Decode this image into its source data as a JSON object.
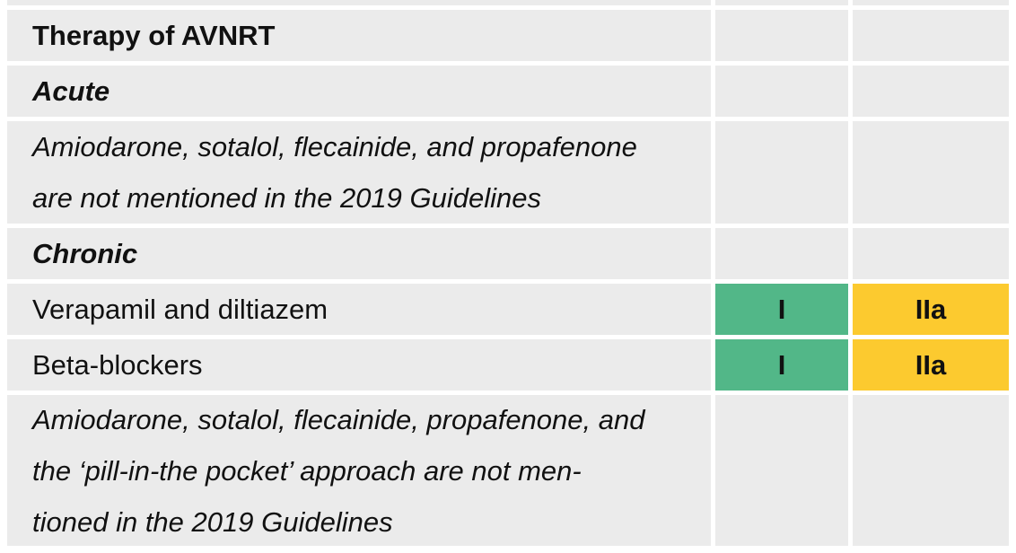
{
  "table": {
    "title": "Therapy of AVNRT",
    "acute_heading": "Acute",
    "acute_note_lines": [
      "Amiodarone, sotalol, flecainide, and propafenone",
      "are not mentioned in the 2019 Guidelines"
    ],
    "chronic_heading": "Chronic",
    "rows": [
      {
        "label": "Verapamil and diltiazem",
        "class_a": "I",
        "class_b": "IIa"
      },
      {
        "label": "Beta-blockers",
        "class_a": "I",
        "class_b": "IIa"
      }
    ],
    "chronic_note_lines": [
      "Amiodarone, sotalol, flecainide, propafenone, and",
      "the ‘pill-in-the pocket’ approach are not men-",
      "tioned in the 2019 Guidelines"
    ]
  },
  "colors": {
    "class_I": "#52b788",
    "class_IIa": "#fcca2f",
    "cell_bg": "#ebebeb"
  }
}
